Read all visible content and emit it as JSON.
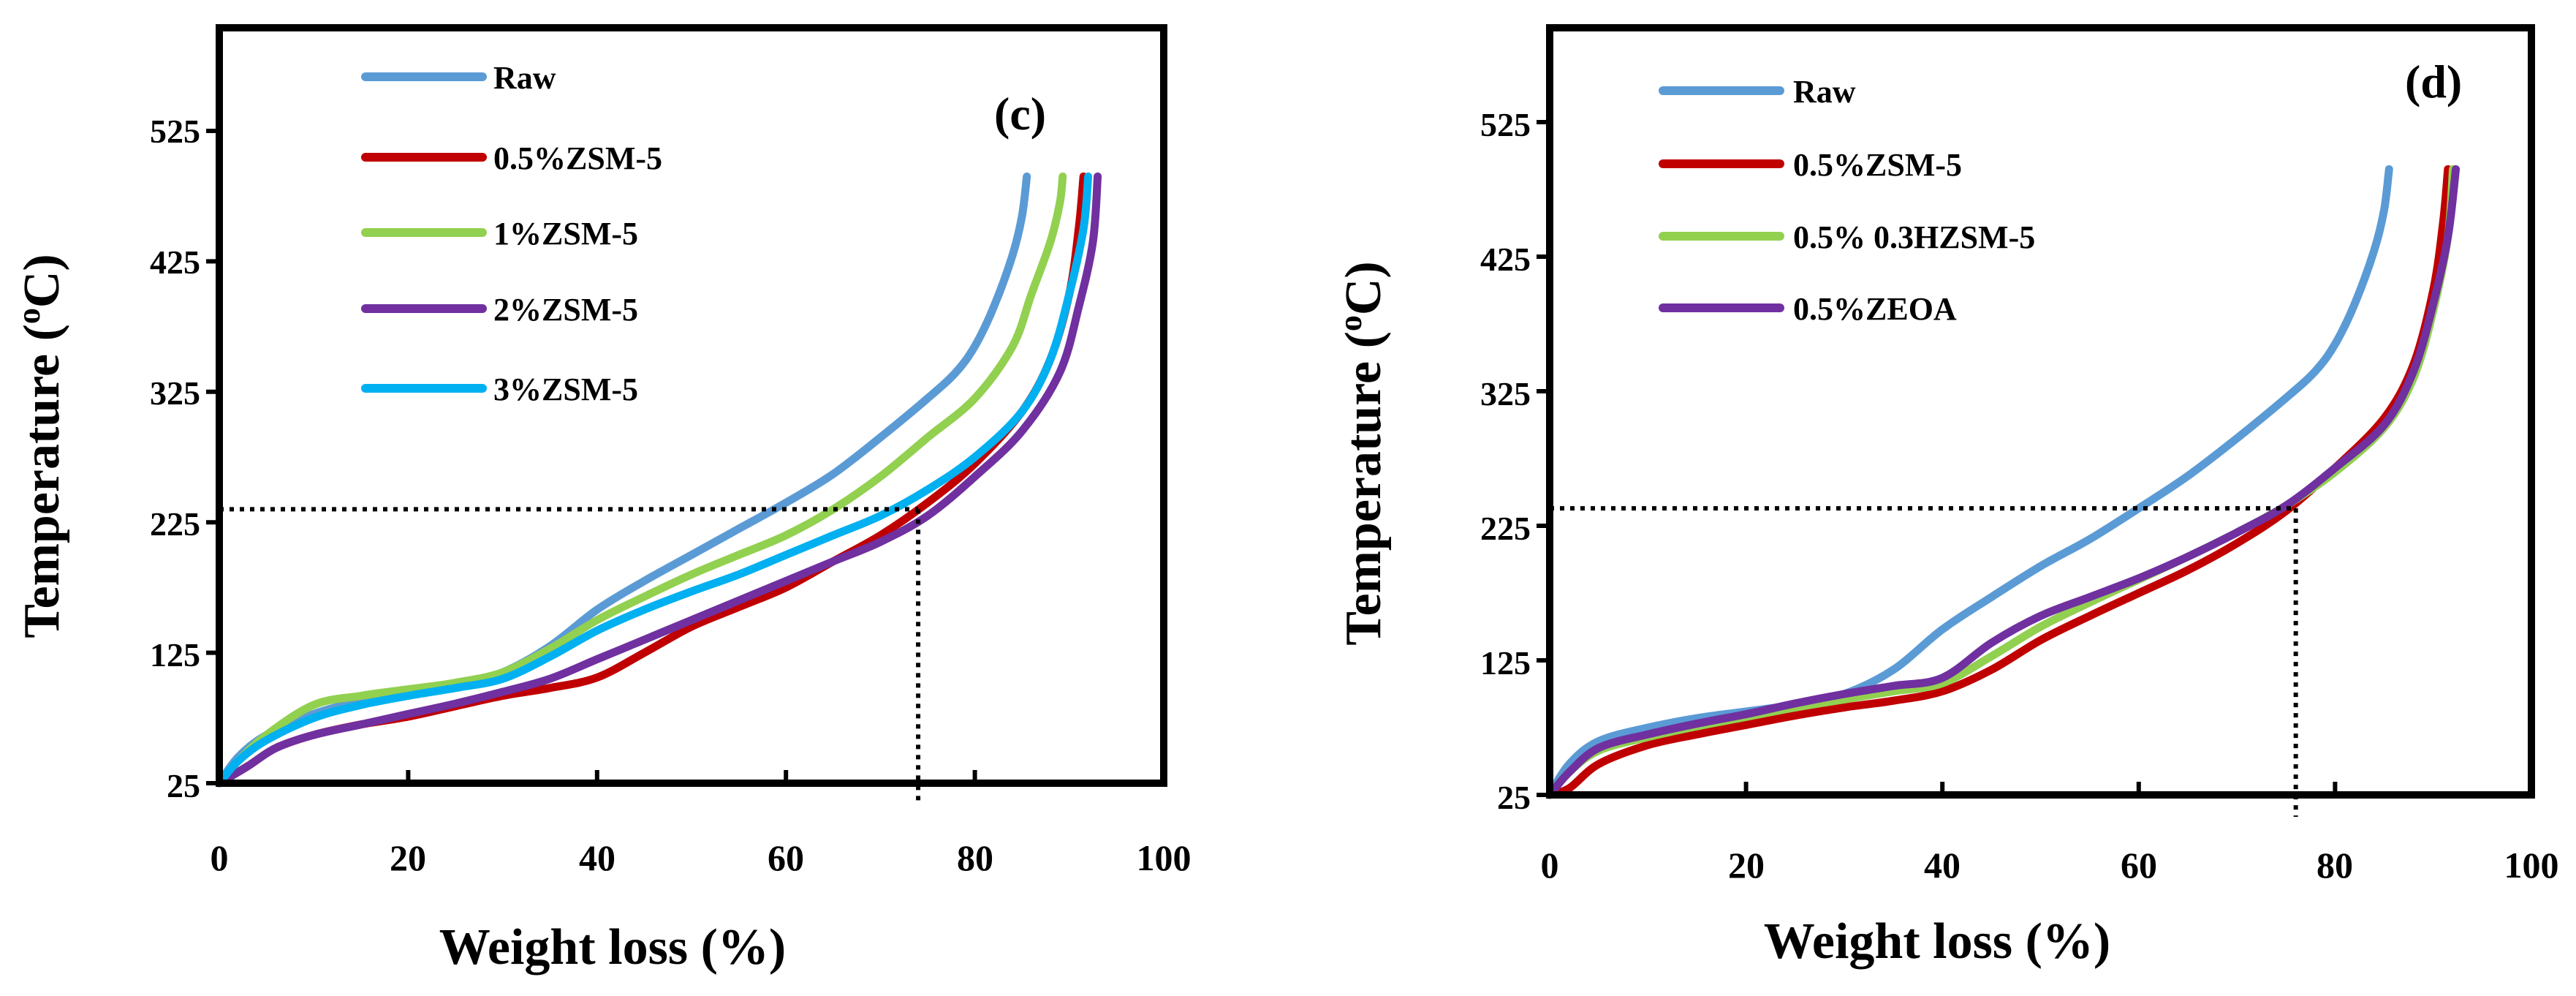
{
  "chart_data": [
    {
      "type": "line",
      "panel_label": "(c)",
      "xlabel": "Weight loss (%)",
      "ylabel": "Temperature (",
      "ylabel_sup": "o",
      "ylabel_end": "C)",
      "xlim": [
        0,
        100
      ],
      "ylim": [
        25,
        625
      ],
      "xticks": [
        "0",
        "20",
        "40",
        "60",
        "80",
        "100"
      ],
      "xtick_values": [
        0,
        20,
        40,
        60,
        80,
        100
      ],
      "yticks": [
        "25",
        "125",
        "225",
        "325",
        "425",
        "525"
      ],
      "ytick_values": [
        25,
        125,
        225,
        325,
        425,
        525
      ],
      "grid": false,
      "legend_position": "top-left",
      "guide": {
        "x": 74,
        "y": 235
      },
      "series": [
        {
          "name": "Raw",
          "color": "#5B9BD5",
          "points": [
            [
              0,
              25
            ],
            [
              2,
              45
            ],
            [
              5,
              62
            ],
            [
              10,
              78
            ],
            [
              15,
              88
            ],
            [
              20,
              95
            ],
            [
              25,
              100
            ],
            [
              30,
              110
            ],
            [
              35,
              130
            ],
            [
              40,
              158
            ],
            [
              45,
              180
            ],
            [
              50,
              200
            ],
            [
              55,
              220
            ],
            [
              60,
              240
            ],
            [
              65,
              262
            ],
            [
              70,
              290
            ],
            [
              75,
              320
            ],
            [
              78,
              340
            ],
            [
              80,
              360
            ],
            [
              82,
              390
            ],
            [
              84,
              430
            ],
            [
              85,
              460
            ],
            [
              85.5,
              490
            ]
          ]
        },
        {
          "name": "0.5%ZSM-5",
          "color": "#C00000",
          "points": [
            [
              0,
              25
            ],
            [
              3,
              38
            ],
            [
              6,
              52
            ],
            [
              10,
              62
            ],
            [
              15,
              70
            ],
            [
              20,
              76
            ],
            [
              25,
              84
            ],
            [
              30,
              92
            ],
            [
              35,
              98
            ],
            [
              40,
              106
            ],
            [
              45,
              125
            ],
            [
              50,
              145
            ],
            [
              55,
              160
            ],
            [
              60,
              175
            ],
            [
              65,
              195
            ],
            [
              70,
              215
            ],
            [
              75,
              240
            ],
            [
              80,
              270
            ],
            [
              85,
              310
            ],
            [
              88,
              350
            ],
            [
              90,
              400
            ],
            [
              91,
              450
            ],
            [
              91.5,
              490
            ]
          ]
        },
        {
          "name": "1%ZSM-5",
          "color": "#92D050",
          "points": [
            [
              0,
              25
            ],
            [
              2,
              42
            ],
            [
              5,
              62
            ],
            [
              10,
              85
            ],
            [
              15,
              92
            ],
            [
              20,
              97
            ],
            [
              25,
              102
            ],
            [
              30,
              110
            ],
            [
              35,
              128
            ],
            [
              40,
              150
            ],
            [
              45,
              168
            ],
            [
              50,
              185
            ],
            [
              55,
              200
            ],
            [
              60,
              215
            ],
            [
              65,
              235
            ],
            [
              70,
              260
            ],
            [
              75,
              290
            ],
            [
              80,
              320
            ],
            [
              84,
              360
            ],
            [
              86,
              400
            ],
            [
              88,
              440
            ],
            [
              89,
              470
            ],
            [
              89.3,
              490
            ]
          ]
        },
        {
          "name": "2%ZSM-5",
          "color": "#7030A0",
          "points": [
            [
              0,
              25
            ],
            [
              3,
              38
            ],
            [
              6,
              52
            ],
            [
              10,
              62
            ],
            [
              15,
              70
            ],
            [
              20,
              78
            ],
            [
              25,
              86
            ],
            [
              30,
              95
            ],
            [
              35,
              105
            ],
            [
              40,
              120
            ],
            [
              45,
              135
            ],
            [
              50,
              150
            ],
            [
              55,
              165
            ],
            [
              60,
              180
            ],
            [
              65,
              195
            ],
            [
              70,
              210
            ],
            [
              75,
              230
            ],
            [
              80,
              260
            ],
            [
              85,
              295
            ],
            [
              89,
              340
            ],
            [
              91,
              390
            ],
            [
              92.5,
              440
            ],
            [
              93,
              490
            ]
          ]
        },
        {
          "name": "3%ZSM-5",
          "color": "#00B0F0",
          "points": [
            [
              0,
              25
            ],
            [
              2,
              42
            ],
            [
              5,
              58
            ],
            [
              10,
              75
            ],
            [
              15,
              85
            ],
            [
              20,
              92
            ],
            [
              25,
              98
            ],
            [
              30,
              105
            ],
            [
              35,
              122
            ],
            [
              40,
              142
            ],
            [
              45,
              158
            ],
            [
              50,
              172
            ],
            [
              55,
              185
            ],
            [
              60,
              200
            ],
            [
              65,
              215
            ],
            [
              70,
              230
            ],
            [
              75,
              250
            ],
            [
              80,
              275
            ],
            [
              85,
              310
            ],
            [
              88,
              350
            ],
            [
              90,
              400
            ],
            [
              91.5,
              450
            ],
            [
              92,
              490
            ]
          ]
        }
      ]
    },
    {
      "type": "line",
      "panel_label": "(d)",
      "xlabel": "Weight loss (%)",
      "ylabel": "Temperature (",
      "ylabel_sup": "o",
      "ylabel_end": "C)",
      "xlim": [
        0,
        100
      ],
      "ylim": [
        25,
        625
      ],
      "xticks": [
        "0",
        "20",
        "40",
        "60",
        "80",
        "100"
      ],
      "xtick_values": [
        0,
        20,
        40,
        60,
        80,
        100
      ],
      "yticks": [
        "25",
        "125",
        "225",
        "325",
        "425",
        "525"
      ],
      "ytick_values": [
        25,
        125,
        225,
        325,
        425,
        525
      ],
      "grid": false,
      "legend_position": "top-left",
      "guide": {
        "x": 76,
        "y": 238
      },
      "series": [
        {
          "name": "Raw",
          "color": "#5B9BD5",
          "points": [
            [
              0,
              25
            ],
            [
              2,
              48
            ],
            [
              5,
              65
            ],
            [
              10,
              75
            ],
            [
              15,
              82
            ],
            [
              20,
              87
            ],
            [
              25,
              92
            ],
            [
              30,
              100
            ],
            [
              35,
              118
            ],
            [
              40,
              148
            ],
            [
              45,
              172
            ],
            [
              50,
              195
            ],
            [
              55,
              215
            ],
            [
              60,
              238
            ],
            [
              65,
              262
            ],
            [
              70,
              290
            ],
            [
              75,
              320
            ],
            [
              78,
              340
            ],
            [
              80,
              360
            ],
            [
              82,
              390
            ],
            [
              84,
              430
            ],
            [
              85,
              460
            ],
            [
              85.5,
              490
            ]
          ]
        },
        {
          "name": "0.5%ZSM-5",
          "color": "#C00000",
          "points": [
            [
              0,
              25
            ],
            [
              2,
              30
            ],
            [
              5,
              48
            ],
            [
              10,
              62
            ],
            [
              15,
              70
            ],
            [
              20,
              77
            ],
            [
              25,
              84
            ],
            [
              30,
              90
            ],
            [
              35,
              95
            ],
            [
              40,
              102
            ],
            [
              45,
              118
            ],
            [
              50,
              140
            ],
            [
              55,
              158
            ],
            [
              60,
              175
            ],
            [
              65,
              192
            ],
            [
              70,
              212
            ],
            [
              75,
              236
            ],
            [
              80,
              268
            ],
            [
              85,
              305
            ],
            [
              88,
              345
            ],
            [
              90,
              400
            ],
            [
              91,
              450
            ],
            [
              91.5,
              490
            ]
          ]
        },
        {
          "name": "0.5% 0.3HZSM-5",
          "color": "#92D050",
          "points": [
            [
              0,
              25
            ],
            [
              2,
              42
            ],
            [
              5,
              58
            ],
            [
              10,
              68
            ],
            [
              15,
              76
            ],
            [
              20,
              83
            ],
            [
              25,
              90
            ],
            [
              30,
              96
            ],
            [
              35,
              102
            ],
            [
              40,
              108
            ],
            [
              45,
              128
            ],
            [
              50,
              150
            ],
            [
              55,
              168
            ],
            [
              60,
              185
            ],
            [
              65,
              202
            ],
            [
              70,
              220
            ],
            [
              75,
              240
            ],
            [
              80,
              265
            ],
            [
              85,
              298
            ],
            [
              88,
              335
            ],
            [
              90,
              385
            ],
            [
              91.5,
              440
            ],
            [
              92,
              490
            ]
          ]
        },
        {
          "name": "0.5%ZEOA",
          "color": "#7030A0",
          "points": [
            [
              0,
              25
            ],
            [
              2,
              42
            ],
            [
              5,
              60
            ],
            [
              10,
              70
            ],
            [
              15,
              78
            ],
            [
              20,
              85
            ],
            [
              25,
              93
            ],
            [
              30,
              100
            ],
            [
              35,
              106
            ],
            [
              40,
              112
            ],
            [
              45,
              138
            ],
            [
              50,
              158
            ],
            [
              55,
              172
            ],
            [
              60,
              186
            ],
            [
              65,
              202
            ],
            [
              70,
              220
            ],
            [
              75,
              240
            ],
            [
              80,
              268
            ],
            [
              85,
              300
            ],
            [
              88,
              340
            ],
            [
              90,
              390
            ],
            [
              91.5,
              440
            ],
            [
              92.3,
              490
            ]
          ]
        }
      ]
    }
  ]
}
